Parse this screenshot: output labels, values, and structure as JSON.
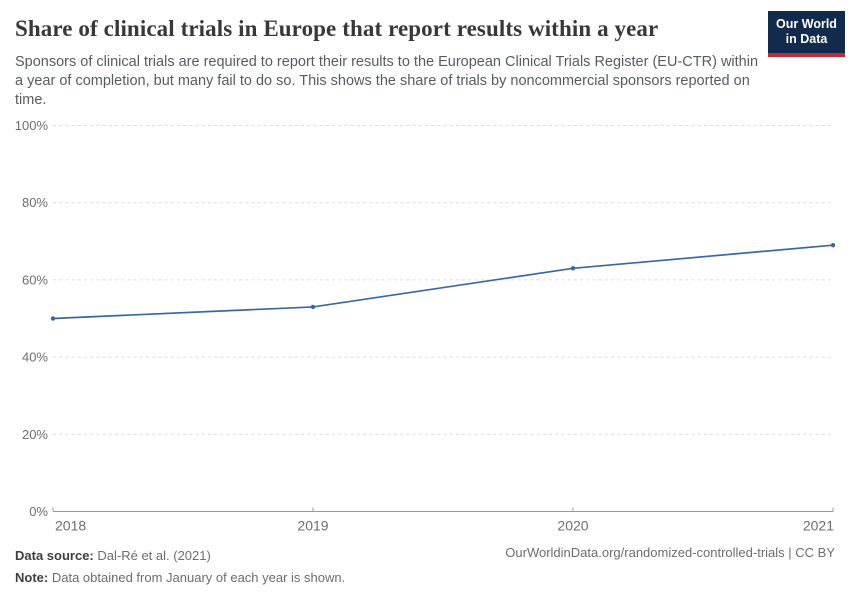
{
  "header": {
    "title": "Share of clinical trials in Europe that report results within a year",
    "subtitle": "Sponsors of clinical trials are required to report their results to the European Clinical Trials Register (EU-CTR) within a year of completion, but many fail to do so. This shows the share of trials by noncommercial sponsors reported on time.",
    "logo": {
      "line1": "Our World",
      "line2": "in Data",
      "bg_color": "#122a4c",
      "accent_color": "#bf2b36"
    }
  },
  "chart_data": {
    "type": "line",
    "x": [
      2018,
      2019,
      2020,
      2021
    ],
    "x_tick_labels": [
      "2018",
      "2019",
      "2020",
      "2021"
    ],
    "series": [
      {
        "values": [
          50,
          53,
          63,
          69
        ]
      }
    ],
    "unit": "%",
    "y_ticks": [
      0,
      20,
      40,
      60,
      80,
      100
    ],
    "y_tick_labels": [
      "0%",
      "20%",
      "40%",
      "60%",
      "80%",
      "100%"
    ],
    "ylim": [
      0,
      100
    ],
    "grid": "horizontal-dashed",
    "legend": false,
    "line_color": "#3a66a4",
    "grid_color": "#dcdcdc",
    "axis_color": "#9a9a9a",
    "tick_label_color": "#6e6e6e"
  },
  "footer": {
    "source_label": "Data source:",
    "source_value": "Dal-Ré et al. (2021)",
    "note_label": "Note:",
    "note_value": "Data obtained from January of each year is shown.",
    "link": "OurWorldinData.org/randomized-controlled-trials | CC BY"
  }
}
